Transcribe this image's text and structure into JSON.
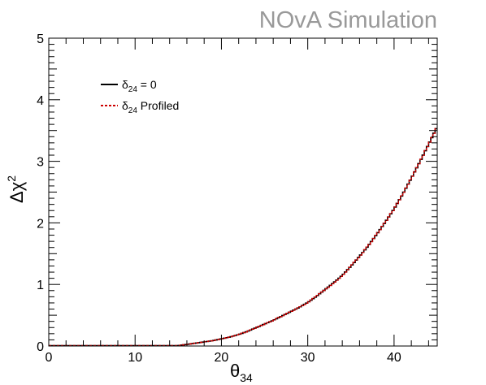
{
  "watermark": {
    "text": "NOvA Simulation",
    "color": "#999999"
  },
  "chart_data": {
    "type": "line",
    "xlabel": {
      "base": "θ",
      "sub": "34"
    },
    "ylabel": {
      "base": "Δχ",
      "sup": "2"
    },
    "xlim": [
      0,
      45
    ],
    "ylim": [
      0,
      5
    ],
    "xticks": [
      0,
      10,
      20,
      30,
      40
    ],
    "yticks": [
      0,
      1,
      2,
      3,
      4,
      5
    ],
    "grid": false,
    "legend_position": "top-left",
    "series": [
      {
        "label_base": "δ",
        "label_sub": "24",
        "label_rest": " = 0",
        "color": "#000000",
        "style": "solid",
        "x": [
          0,
          5,
          10,
          12,
          14,
          15,
          16,
          17,
          18,
          19,
          20,
          21,
          22,
          23,
          24,
          25,
          26,
          27,
          28,
          29,
          30,
          31,
          32,
          33,
          34,
          35,
          36,
          37,
          38,
          39,
          40,
          41,
          42,
          43,
          44,
          45
        ],
        "y": [
          0.0,
          0.0,
          0.0,
          0.0,
          0.0,
          0.0,
          0.02,
          0.04,
          0.06,
          0.08,
          0.11,
          0.14,
          0.18,
          0.23,
          0.29,
          0.35,
          0.41,
          0.48,
          0.55,
          0.62,
          0.7,
          0.8,
          0.91,
          1.02,
          1.14,
          1.29,
          1.45,
          1.62,
          1.81,
          2.01,
          2.22,
          2.46,
          2.72,
          2.99,
          3.27,
          3.56
        ]
      },
      {
        "label_base": "δ",
        "label_sub": "24",
        "label_rest": " Profiled",
        "color": "#cc0000",
        "style": "dashed",
        "x": [
          0,
          5,
          10,
          12,
          14,
          15,
          16,
          17,
          18,
          19,
          20,
          21,
          22,
          23,
          24,
          25,
          26,
          27,
          28,
          29,
          30,
          31,
          32,
          33,
          34,
          35,
          36,
          37,
          38,
          39,
          40,
          41,
          42,
          43,
          44,
          45
        ],
        "y": [
          0.0,
          0.0,
          0.0,
          0.0,
          0.0,
          0.0,
          0.02,
          0.04,
          0.06,
          0.08,
          0.11,
          0.14,
          0.18,
          0.23,
          0.29,
          0.35,
          0.41,
          0.48,
          0.55,
          0.62,
          0.7,
          0.8,
          0.91,
          1.02,
          1.14,
          1.29,
          1.45,
          1.62,
          1.81,
          2.01,
          2.22,
          2.46,
          2.72,
          2.99,
          3.27,
          3.56
        ]
      }
    ]
  }
}
